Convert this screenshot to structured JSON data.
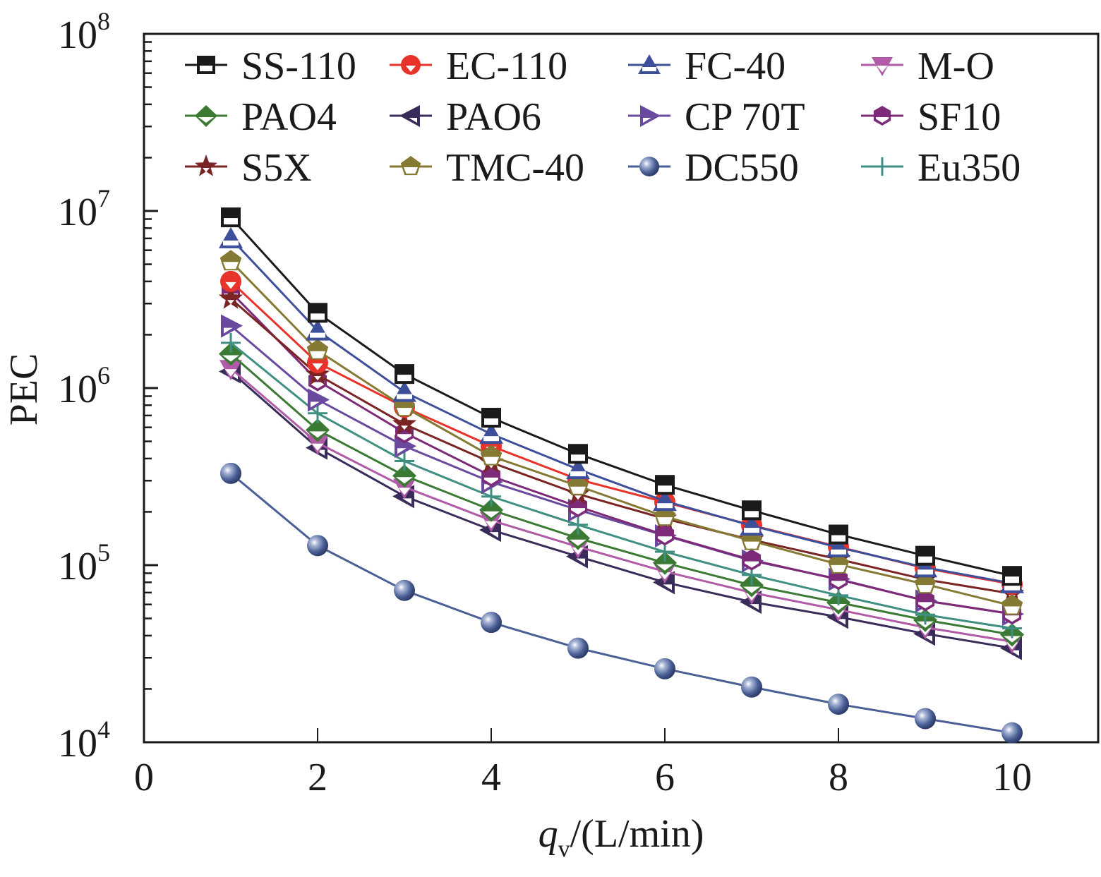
{
  "chart_data": {
    "type": "line",
    "title": "",
    "xlabel": "q_v/(L/min)",
    "xlabel_parts": {
      "symbol": "q",
      "subscript": "v",
      "unit": "/(L/min)"
    },
    "ylabel": "PEC",
    "xlim": [
      0,
      11
    ],
    "ylim": [
      10000,
      100000000
    ],
    "yscale": "log",
    "x_ticks": [
      "0",
      "2",
      "4",
      "6",
      "8",
      "10"
    ],
    "x_tick_values": [
      0,
      2,
      4,
      6,
      8,
      10
    ],
    "y_ticks": [
      {
        "base": "10",
        "exp": "4",
        "value": 10000
      },
      {
        "base": "10",
        "exp": "5",
        "value": 100000
      },
      {
        "base": "10",
        "exp": "6",
        "value": 1000000
      },
      {
        "base": "10",
        "exp": "7",
        "value": 10000000
      },
      {
        "base": "10",
        "exp": "8",
        "value": 100000000
      }
    ],
    "grid": false,
    "legend_position": "top",
    "x": [
      1,
      2,
      3,
      4,
      5,
      6,
      7,
      8,
      9,
      10
    ],
    "series": [
      {
        "name": "SS-110",
        "color": "#1a1a1a",
        "marker": "square",
        "values": [
          9200000,
          2660000,
          1200000,
          680000,
          425000,
          284000,
          204000,
          149000,
          113000,
          87000
        ]
      },
      {
        "name": "EC-110",
        "color": "#e8332a",
        "marker": "circle",
        "values": [
          4000000,
          1390000,
          780000,
          470000,
          305000,
          227000,
          168000,
          127000,
          96000,
          78000
        ]
      },
      {
        "name": "FC-40",
        "color": "#3d4f9a",
        "marker": "triangle-up",
        "values": [
          7000000,
          2110000,
          950000,
          550000,
          348000,
          230000,
          167000,
          126000,
          97000,
          79000
        ]
      },
      {
        "name": "M-O",
        "color": "#b05aa8",
        "marker": "triangle-down",
        "values": [
          1290000,
          490000,
          276000,
          179000,
          127000,
          92000,
          70000,
          56000,
          44500,
          37000
        ]
      },
      {
        "name": "PAO4",
        "color": "#3b7a33",
        "marker": "diamond",
        "values": [
          1560000,
          580000,
          320000,
          205000,
          142000,
          103000,
          77000,
          61500,
          49000,
          40500
        ]
      },
      {
        "name": "PAO6",
        "color": "#3a2c5a",
        "marker": "triangle-left",
        "values": [
          1240000,
          460000,
          245000,
          158000,
          112000,
          80000,
          62000,
          51000,
          41000,
          34000
        ]
      },
      {
        "name": "CP 70T",
        "color": "#6a4a9e",
        "marker": "triangle-right",
        "values": [
          2250000,
          860000,
          470000,
          295000,
          205000,
          147000,
          106000,
          83500,
          63000,
          53000
        ]
      },
      {
        "name": "SF10",
        "color": "#7d2a78",
        "marker": "hexagon",
        "values": [
          3480000,
          1100000,
          560000,
          318000,
          214000,
          148000,
          107000,
          83000,
          63000,
          53000
        ]
      },
      {
        "name": "S5X",
        "color": "#7a2424",
        "marker": "star",
        "values": [
          3200000,
          1190000,
          625000,
          380000,
          252000,
          183000,
          139000,
          108000,
          83000,
          69000
        ]
      },
      {
        "name": "TMC-40",
        "color": "#857a33",
        "marker": "pentagon",
        "values": [
          5200000,
          1630000,
          780000,
          412000,
          280000,
          188000,
          137000,
          101000,
          78000,
          59000
        ]
      },
      {
        "name": "DC550",
        "color": "#4a5f95",
        "marker": "sphere",
        "values": [
          330000,
          129000,
          72000,
          47500,
          34000,
          26000,
          20500,
          16400,
          13600,
          11300
        ]
      },
      {
        "name": "Eu350",
        "color": "#3f8f82",
        "marker": "plus",
        "values": [
          1800000,
          720000,
          387000,
          244000,
          169000,
          119000,
          88000,
          67500,
          52500,
          44000
        ]
      }
    ]
  }
}
